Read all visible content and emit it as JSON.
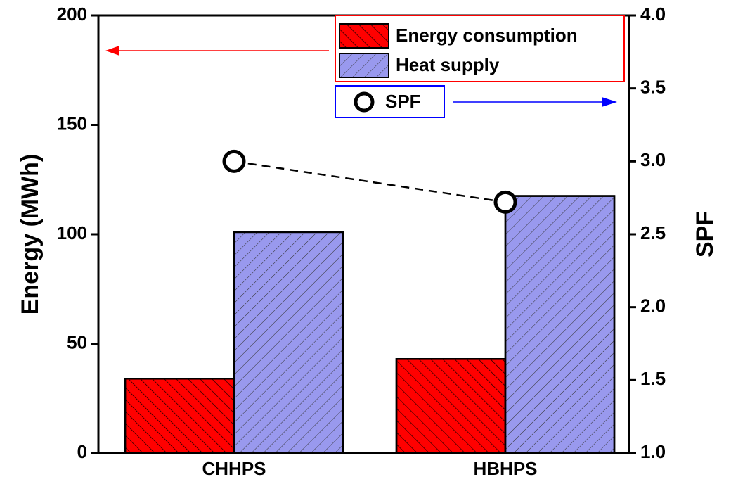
{
  "chart_data": {
    "type": "bar",
    "categories": [
      "CHHPS",
      "HBHPS"
    ],
    "series": [
      {
        "name": "Energy consumption",
        "color": "#ff0000",
        "values": [
          34,
          43
        ]
      },
      {
        "name": "Heat supply",
        "color": "#9999ee",
        "values": [
          101,
          117.5
        ]
      },
      {
        "name": "SPF",
        "type": "line",
        "axis": "y2",
        "color": "#000000",
        "values": [
          3.0,
          2.72
        ]
      }
    ],
    "ylabel": "Energy (MWh)",
    "y2label": "SPF",
    "ylim": [
      0,
      200
    ],
    "yticks": [
      0,
      50,
      100,
      150,
      200
    ],
    "y2lim": [
      1.0,
      4.0
    ],
    "y2ticks": [
      {
        "value": 1.0,
        "label": "1.0"
      },
      1.5,
      {
        "value": 2.0,
        "label": "2.0"
      },
      2.5,
      {
        "value": 3.0,
        "label": "3.0"
      },
      3.5,
      {
        "value": 4.0,
        "label": "4.0"
      }
    ]
  }
}
